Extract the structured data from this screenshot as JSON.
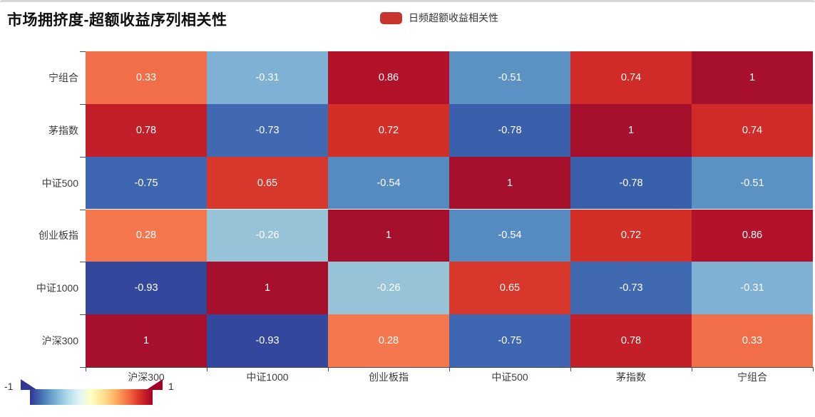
{
  "title": "市场拥挤度-超额收益序列相关性",
  "legend": {
    "label": "日频超额收益相关性",
    "marker_color": "#c8342e"
  },
  "chart_data": {
    "type": "heatmap",
    "title": "市场拥挤度-超额收益序列相关性",
    "legend_entries": [
      "日频超额收益相关性"
    ],
    "x_categories": [
      "沪深300",
      "中证1000",
      "创业板指",
      "中证500",
      "茅指数",
      "宁组合"
    ],
    "y_categories_top_to_bottom": [
      "宁组合",
      "茅指数",
      "中证500",
      "创业板指",
      "中证1000",
      "沪深300"
    ],
    "matrix": [
      [
        0.33,
        -0.31,
        0.86,
        -0.51,
        0.74,
        1
      ],
      [
        0.78,
        -0.73,
        0.72,
        -0.78,
        1,
        0.74
      ],
      [
        -0.75,
        0.65,
        -0.54,
        1,
        -0.78,
        -0.51
      ],
      [
        0.28,
        -0.26,
        1,
        -0.54,
        0.72,
        0.86
      ],
      [
        -0.93,
        1,
        -0.26,
        0.65,
        -0.73,
        -0.31
      ],
      [
        1,
        -0.93,
        0.28,
        -0.75,
        0.78,
        0.33
      ]
    ],
    "value_color_map": {
      "1": "#a6102d",
      "0.86": "#b3122b",
      "0.78": "#c21f28",
      "0.74": "#d02b28",
      "0.72": "#d32f27",
      "0.65": "#d8382b",
      "0.33": "#f26e48",
      "0.28": "#f5774e",
      "-0.26": "#97c3d9",
      "-0.31": "#7eb1d3",
      "-0.51": "#5c91c3",
      "-0.54": "#558bc0",
      "-0.73": "#4169b2",
      "-0.75": "#3f66b0",
      "-0.78": "#3a60ac",
      "-0.93": "#33479d"
    },
    "cell_text_color": "#ffffff",
    "value_range": [
      -1,
      1
    ],
    "grid_on": false,
    "legend_position": "top-center",
    "visual_map": {
      "min_label": "-1",
      "max_label": "1",
      "gradient": [
        "#313695",
        "#4575b4",
        "#74add1",
        "#abd9e9",
        "#e0f3f8",
        "#ffffbf",
        "#fee090",
        "#fdae61",
        "#f46d43",
        "#d73027",
        "#a50026"
      ],
      "left_handle_color": "#313695",
      "right_handle_color": "#a50026",
      "position": "bottom-left"
    }
  }
}
